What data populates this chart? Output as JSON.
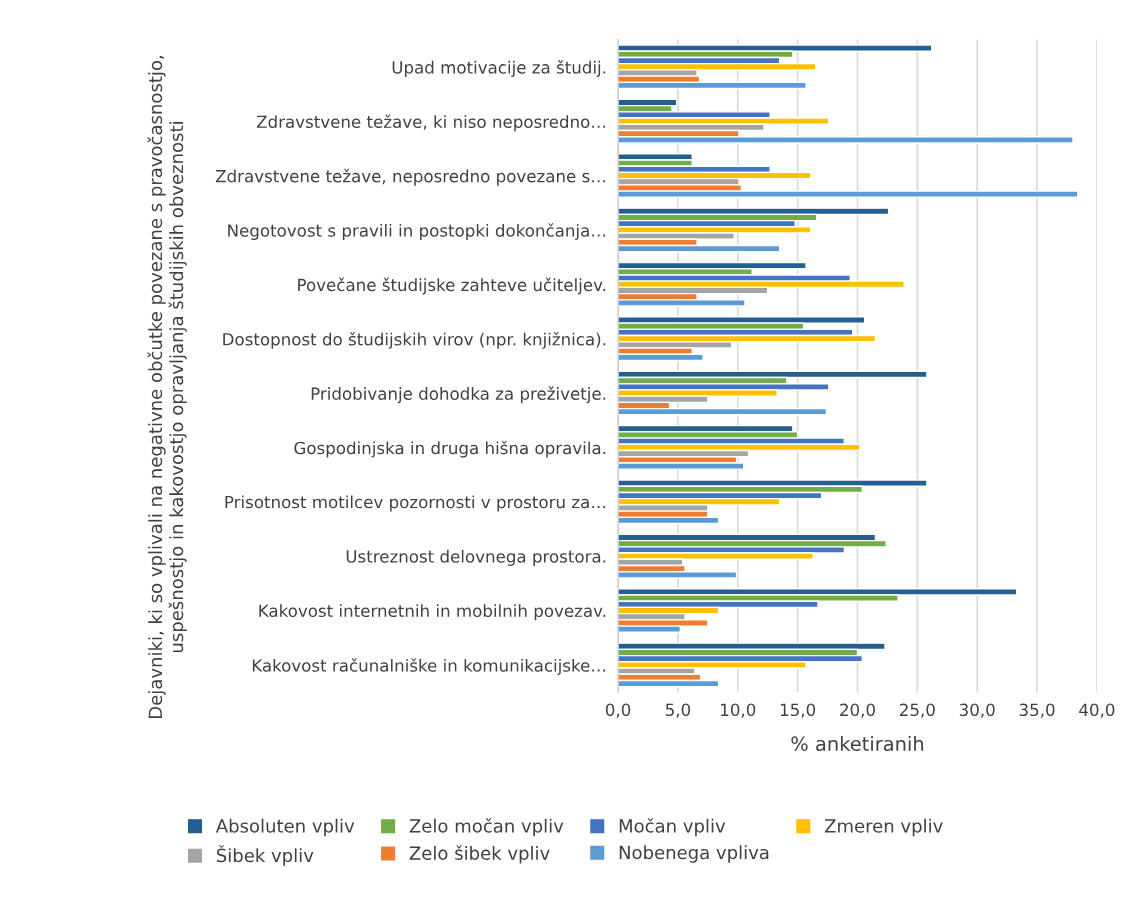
{
  "chart_data": {
    "type": "bar",
    "orientation": "horizontal",
    "xlabel": "% anketiranih",
    "ylabel": "Dejavniki, ki so vplivali na negativne občutke povezane s pravočasnostjo, uspešnostjo in kakovostjo opravljanja študijskih obveznosti",
    "categories": [
      "Upad motivacije za študij.",
      "Zdravstvene težave, ki niso neposredno…",
      "Zdravstvene težave, neposredno povezane s…",
      "Negotovost s pravili in postopki dokončanja…",
      "Povečane študijske zahteve učiteljev.",
      "Dostopnost do študijskih virov (npr. knjižnica).",
      "Pridobivanje dohodka za preživetje.",
      "Gospodinjska in druga hišna opravila.",
      "Prisotnost motilcev pozornosti v prostoru za…",
      "Ustreznost delovnega prostora.",
      "Kakovost internetnih in mobilnih povezav.",
      "Kakovost računalniške in komunikacijske…"
    ],
    "series": [
      {
        "name": "Absoluten vpliv",
        "color": "#255e91",
        "values": [
          26.2,
          4.9,
          6.2,
          22.6,
          15.7,
          20.6,
          25.8,
          14.6,
          25.8,
          21.5,
          33.3,
          22.3
        ]
      },
      {
        "name": "Zelo močan vpliv",
        "color": "#70ad47",
        "values": [
          14.6,
          4.5,
          6.2,
          16.6,
          11.2,
          15.5,
          14.1,
          15.0,
          20.4,
          22.4,
          23.4,
          20.0
        ]
      },
      {
        "name": "Močan vpliv",
        "color": "#4472c4",
        "values": [
          13.5,
          12.7,
          12.7,
          14.8,
          19.4,
          19.6,
          17.6,
          18.9,
          17.0,
          18.9,
          16.7,
          20.4
        ]
      },
      {
        "name": "Zmeren vpliv",
        "color": "#ffc000",
        "values": [
          16.5,
          17.6,
          16.1,
          16.1,
          23.9,
          21.5,
          13.3,
          20.2,
          13.5,
          16.3,
          8.4,
          15.7
        ]
      },
      {
        "name": "Šibek vpliv",
        "color": "#a5a5a5",
        "values": [
          6.6,
          12.2,
          10.1,
          9.7,
          12.5,
          9.5,
          7.5,
          10.9,
          7.5,
          5.4,
          5.6,
          6.4
        ]
      },
      {
        "name": "Zelo šibek vpliv",
        "color": "#ed7d31",
        "values": [
          6.8,
          10.1,
          10.3,
          6.6,
          6.6,
          6.2,
          4.3,
          9.9,
          7.5,
          5.6,
          7.5,
          6.9
        ]
      },
      {
        "name": "Nobenega vpliva",
        "color": "#5b9bd5",
        "values": [
          15.7,
          38.0,
          38.4,
          13.5,
          10.6,
          7.1,
          17.4,
          10.5,
          8.4,
          9.9,
          5.2,
          8.4
        ]
      }
    ],
    "xlim": [
      0,
      40
    ],
    "xticks": [
      {
        "value": 0,
        "label": "0,0"
      },
      {
        "value": 5,
        "label": "5,0"
      },
      {
        "value": 10,
        "label": "10,0"
      },
      {
        "value": 15,
        "label": "15,0"
      },
      {
        "value": 20,
        "label": "20,0"
      },
      {
        "value": 25,
        "label": "25,0"
      },
      {
        "value": 30,
        "label": "30,0"
      },
      {
        "value": 35,
        "label": "35,0"
      },
      {
        "value": 40,
        "label": "40,0"
      }
    ],
    "grid": "x",
    "legend": "bottom"
  }
}
